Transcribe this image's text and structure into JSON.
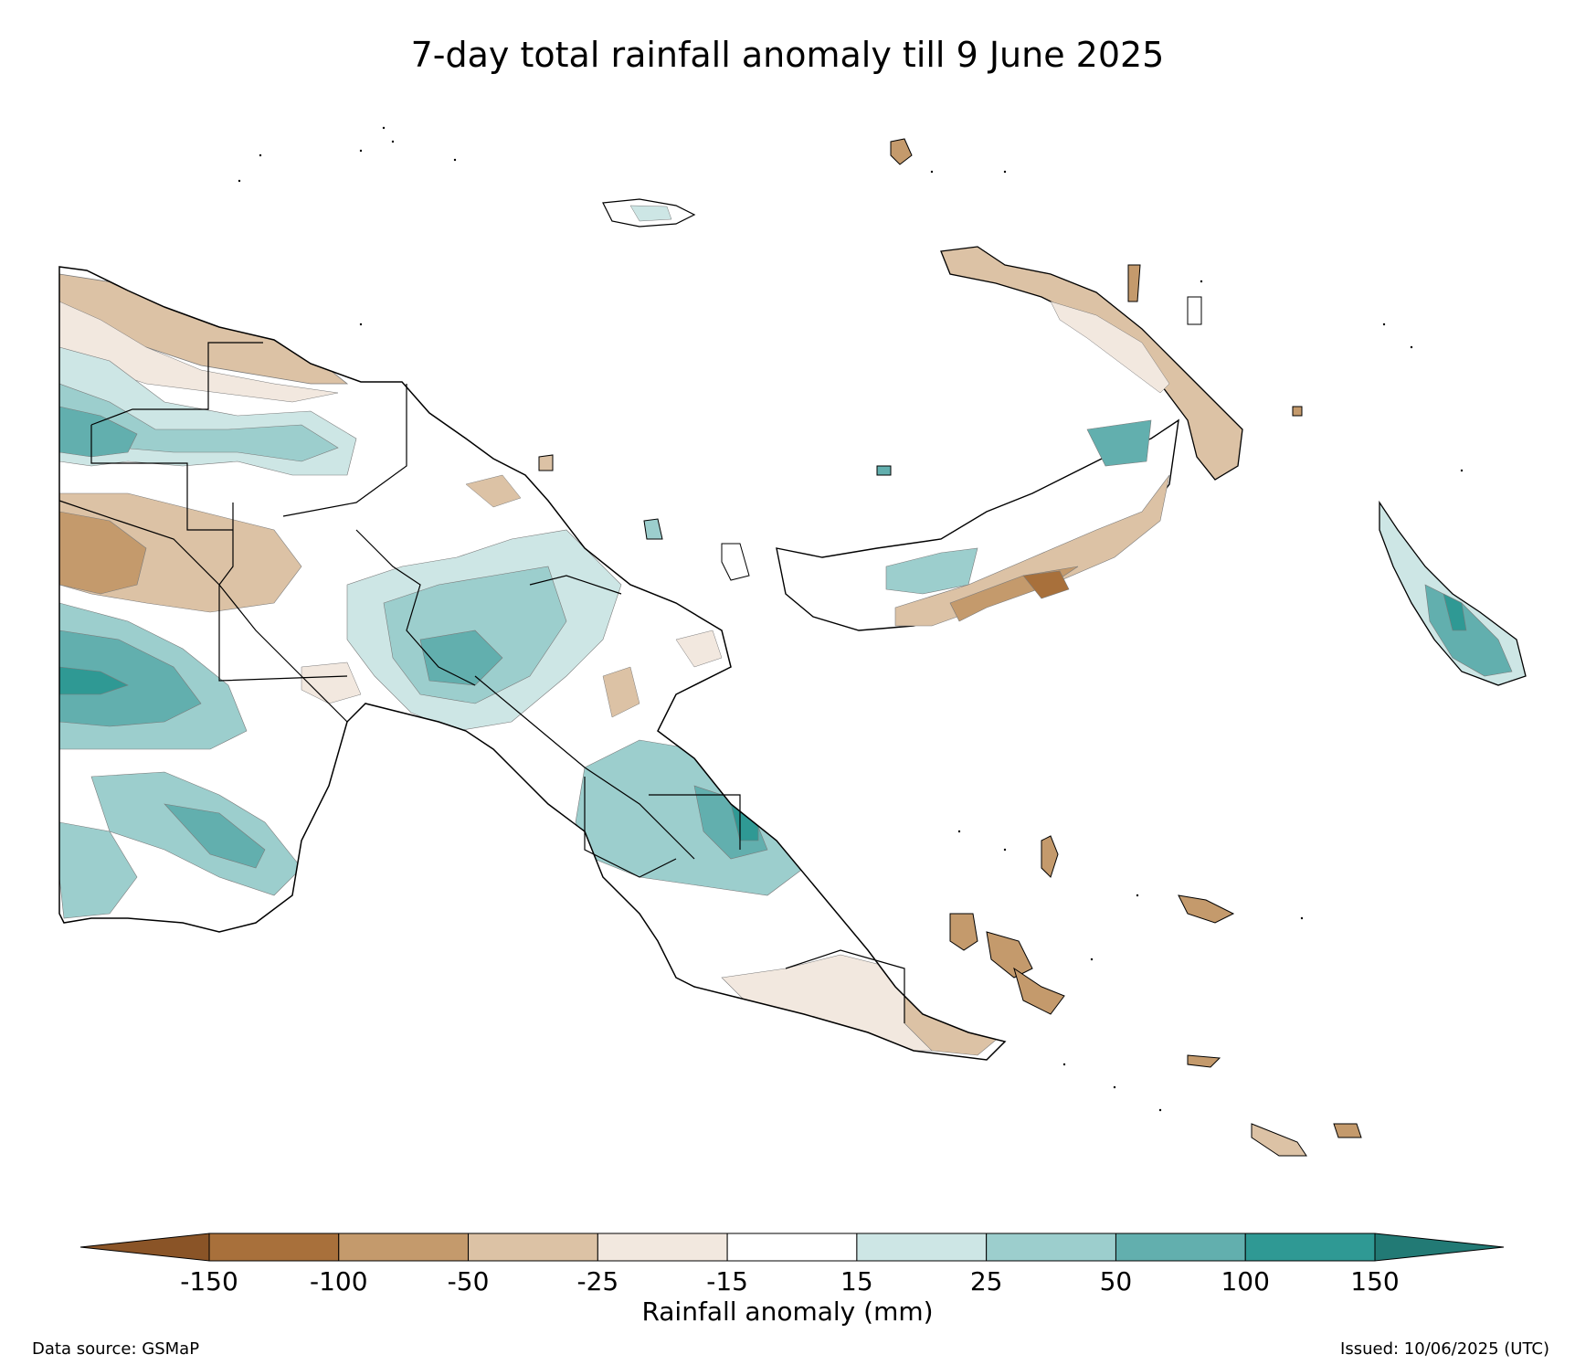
{
  "title": "7-day total rainfall anomaly till 9 June 2025",
  "colorbar": {
    "label": "Rainfall anomaly (mm)",
    "ticks": [
      "-150",
      "-100",
      "-50",
      "-25",
      "-15",
      "15",
      "25",
      "50",
      "100",
      "150"
    ],
    "colors": {
      "below_min": "#8a5427",
      "bins": [
        "#a8703b",
        "#c49a6c",
        "#dcc2a5",
        "#f2e8df",
        "#ffffff",
        "#cde6e5",
        "#9ccecd",
        "#62afae",
        "#2f9994"
      ],
      "above_max": "#227a75"
    }
  },
  "colors": {
    "outline": "#000000",
    "contour": "#7a7a7a"
  },
  "footer": {
    "source": "Data source: GSMaP",
    "issued": "Issued: 10/06/2025 (UTC)"
  }
}
